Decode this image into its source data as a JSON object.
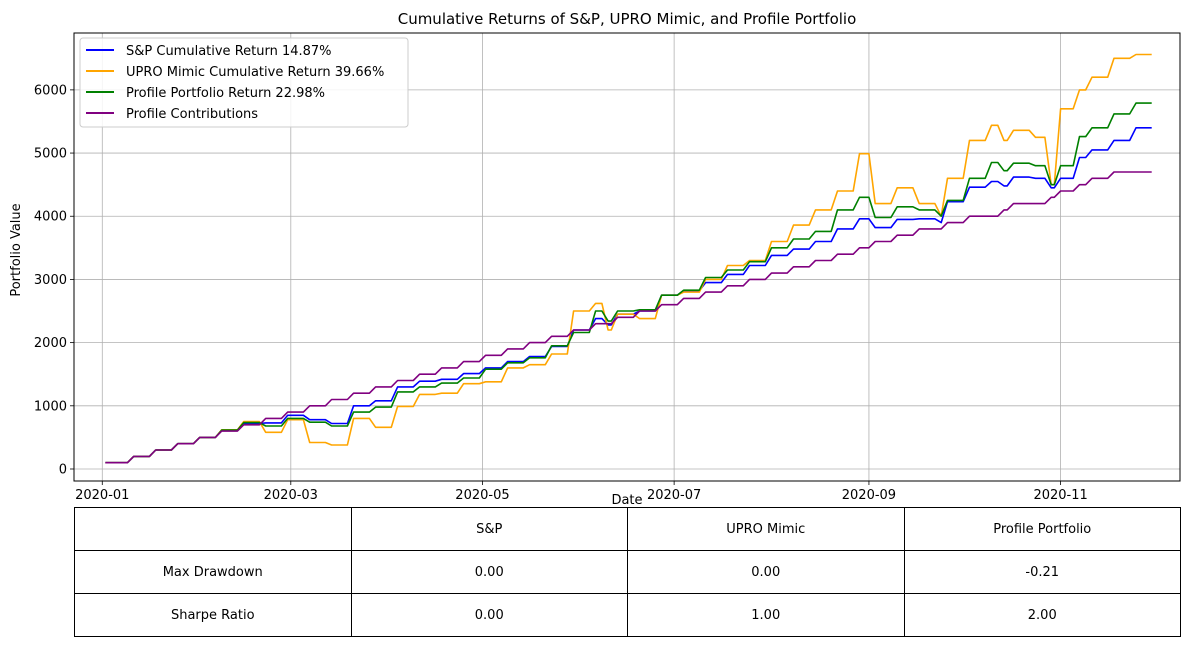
{
  "chart_data": {
    "type": "line",
    "title": "Cumulative Returns of S&P, UPRO Mimic, and Profile Portfolio",
    "xlabel": "Date",
    "ylabel": "Portfolio Value",
    "x_ticks": [
      "2020-01",
      "2020-03",
      "2020-05",
      "2020-07",
      "2020-09",
      "2020-11"
    ],
    "y_ticks": [
      0,
      1000,
      2000,
      3000,
      4000,
      5000,
      6000
    ],
    "xlim": [
      "2019-12-23",
      "2020-12-09"
    ],
    "ylim": [
      -190,
      6900
    ],
    "grid": true,
    "legend_position": "upper-left",
    "series": [
      {
        "name": "S&P Cumulative Return 14.87%",
        "color": "#0000ff",
        "x": [
          "2020-01-02",
          "2020-01-09",
          "2020-01-16",
          "2020-01-23",
          "2020-01-30",
          "2020-02-06",
          "2020-02-13",
          "2020-02-20",
          "2020-02-27",
          "2020-03-05",
          "2020-03-12",
          "2020-03-19",
          "2020-03-26",
          "2020-04-02",
          "2020-04-09",
          "2020-04-16",
          "2020-04-23",
          "2020-04-30",
          "2020-05-07",
          "2020-05-14",
          "2020-05-21",
          "2020-05-28",
          "2020-06-04",
          "2020-06-08",
          "2020-06-11",
          "2020-06-18",
          "2020-06-25",
          "2020-07-02",
          "2020-07-09",
          "2020-07-16",
          "2020-07-23",
          "2020-07-30",
          "2020-08-06",
          "2020-08-13",
          "2020-08-20",
          "2020-08-27",
          "2020-09-01",
          "2020-09-08",
          "2020-09-15",
          "2020-09-22",
          "2020-09-24",
          "2020-10-01",
          "2020-10-08",
          "2020-10-12",
          "2020-10-15",
          "2020-10-22",
          "2020-10-27",
          "2020-10-30",
          "2020-11-05",
          "2020-11-09",
          "2020-11-16",
          "2020-11-23",
          "2020-11-30"
        ],
        "values": [
          100,
          100,
          200,
          300,
          400,
          500,
          610,
          720,
          730,
          850,
          780,
          720,
          1000,
          1080,
          1300,
          1390,
          1420,
          1510,
          1600,
          1700,
          1780,
          1940,
          2200,
          2380,
          2280,
          2450,
          2500,
          2750,
          2820,
          2950,
          3080,
          3220,
          3380,
          3480,
          3600,
          3800,
          3960,
          3820,
          3950,
          3960,
          3900,
          4230,
          4460,
          4550,
          4480,
          4620,
          4600,
          4450,
          4600,
          4930,
          5050,
          5200,
          5400
        ]
      },
      {
        "name": "UPRO Mimic Cumulative Return 39.66%",
        "color": "#ffa500",
        "x": [
          "2020-01-02",
          "2020-01-09",
          "2020-01-16",
          "2020-01-23",
          "2020-01-30",
          "2020-02-06",
          "2020-02-13",
          "2020-02-20",
          "2020-02-27",
          "2020-03-05",
          "2020-03-12",
          "2020-03-19",
          "2020-03-26",
          "2020-04-02",
          "2020-04-09",
          "2020-04-16",
          "2020-04-23",
          "2020-04-30",
          "2020-05-07",
          "2020-05-14",
          "2020-05-21",
          "2020-05-28",
          "2020-06-04",
          "2020-06-08",
          "2020-06-11",
          "2020-06-18",
          "2020-06-25",
          "2020-07-02",
          "2020-07-09",
          "2020-07-16",
          "2020-07-23",
          "2020-07-30",
          "2020-08-06",
          "2020-08-13",
          "2020-08-20",
          "2020-08-27",
          "2020-09-01",
          "2020-09-08",
          "2020-09-15",
          "2020-09-22",
          "2020-09-24",
          "2020-10-01",
          "2020-10-08",
          "2020-10-12",
          "2020-10-15",
          "2020-10-22",
          "2020-10-27",
          "2020-10-30",
          "2020-11-05",
          "2020-11-09",
          "2020-11-16",
          "2020-11-23",
          "2020-11-30"
        ],
        "values": [
          100,
          100,
          200,
          300,
          400,
          500,
          620,
          750,
          580,
          780,
          420,
          380,
          800,
          660,
          990,
          1180,
          1200,
          1350,
          1380,
          1600,
          1650,
          1820,
          2500,
          2620,
          2200,
          2450,
          2380,
          2750,
          2800,
          3000,
          3220,
          3300,
          3600,
          3860,
          4100,
          4400,
          4990,
          4200,
          4450,
          4200,
          4000,
          4600,
          5200,
          5440,
          5200,
          5360,
          5250,
          4500,
          5700,
          6000,
          6200,
          6500,
          6560
        ]
      },
      {
        "name": "Profile Portfolio Return 22.98%",
        "color": "#008000",
        "x": [
          "2020-01-02",
          "2020-01-09",
          "2020-01-16",
          "2020-01-23",
          "2020-01-30",
          "2020-02-06",
          "2020-02-13",
          "2020-02-20",
          "2020-02-27",
          "2020-03-05",
          "2020-03-12",
          "2020-03-19",
          "2020-03-26",
          "2020-04-02",
          "2020-04-09",
          "2020-04-16",
          "2020-04-23",
          "2020-04-30",
          "2020-05-07",
          "2020-05-14",
          "2020-05-21",
          "2020-05-28",
          "2020-06-04",
          "2020-06-08",
          "2020-06-11",
          "2020-06-18",
          "2020-06-25",
          "2020-07-02",
          "2020-07-09",
          "2020-07-16",
          "2020-07-23",
          "2020-07-30",
          "2020-08-06",
          "2020-08-13",
          "2020-08-20",
          "2020-08-27",
          "2020-09-01",
          "2020-09-08",
          "2020-09-15",
          "2020-09-22",
          "2020-09-24",
          "2020-10-01",
          "2020-10-08",
          "2020-10-12",
          "2020-10-15",
          "2020-10-22",
          "2020-10-27",
          "2020-10-30",
          "2020-11-05",
          "2020-11-09",
          "2020-11-16",
          "2020-11-23",
          "2020-11-30"
        ],
        "values": [
          100,
          100,
          200,
          300,
          400,
          500,
          615,
          735,
          680,
          800,
          740,
          680,
          900,
          980,
          1220,
          1300,
          1360,
          1440,
          1580,
          1680,
          1760,
          1950,
          2160,
          2500,
          2340,
          2500,
          2520,
          2750,
          2830,
          3030,
          3150,
          3280,
          3500,
          3640,
          3760,
          4100,
          4300,
          3980,
          4150,
          4100,
          4000,
          4250,
          4600,
          4850,
          4720,
          4840,
          4800,
          4500,
          4800,
          5260,
          5400,
          5620,
          5790
        ]
      },
      {
        "name": "Profile Contributions",
        "color": "#800080",
        "x": [
          "2020-01-02",
          "2020-01-09",
          "2020-01-16",
          "2020-01-23",
          "2020-01-30",
          "2020-02-06",
          "2020-02-13",
          "2020-02-20",
          "2020-02-27",
          "2020-03-05",
          "2020-03-12",
          "2020-03-19",
          "2020-03-26",
          "2020-04-02",
          "2020-04-09",
          "2020-04-16",
          "2020-04-23",
          "2020-04-30",
          "2020-05-07",
          "2020-05-14",
          "2020-05-21",
          "2020-05-28",
          "2020-06-04",
          "2020-06-08",
          "2020-06-11",
          "2020-06-18",
          "2020-06-25",
          "2020-07-02",
          "2020-07-09",
          "2020-07-16",
          "2020-07-23",
          "2020-07-30",
          "2020-08-06",
          "2020-08-13",
          "2020-08-20",
          "2020-08-27",
          "2020-09-01",
          "2020-09-08",
          "2020-09-15",
          "2020-09-22",
          "2020-09-24",
          "2020-10-01",
          "2020-10-08",
          "2020-10-12",
          "2020-10-15",
          "2020-10-22",
          "2020-10-27",
          "2020-10-30",
          "2020-11-05",
          "2020-11-09",
          "2020-11-16",
          "2020-11-23",
          "2020-11-30"
        ],
        "values": [
          100,
          100,
          200,
          300,
          400,
          500,
          600,
          700,
          800,
          900,
          1000,
          1100,
          1200,
          1300,
          1400,
          1500,
          1600,
          1700,
          1800,
          1900,
          2000,
          2100,
          2200,
          2300,
          2300,
          2400,
          2500,
          2600,
          2700,
          2800,
          2900,
          3000,
          3100,
          3200,
          3300,
          3400,
          3500,
          3600,
          3700,
          3800,
          3800,
          3900,
          4000,
          4000,
          4100,
          4200,
          4200,
          4300,
          4400,
          4500,
          4600,
          4700,
          4700
        ]
      }
    ]
  },
  "table": {
    "header": [
      "",
      "S&P",
      "UPRO Mimic",
      "Profile Portfolio"
    ],
    "rows": [
      [
        "Max Drawdown",
        "0.00",
        "0.00",
        "-0.21"
      ],
      [
        "Sharpe Ratio",
        "0.00",
        "1.00",
        "2.00"
      ]
    ]
  }
}
